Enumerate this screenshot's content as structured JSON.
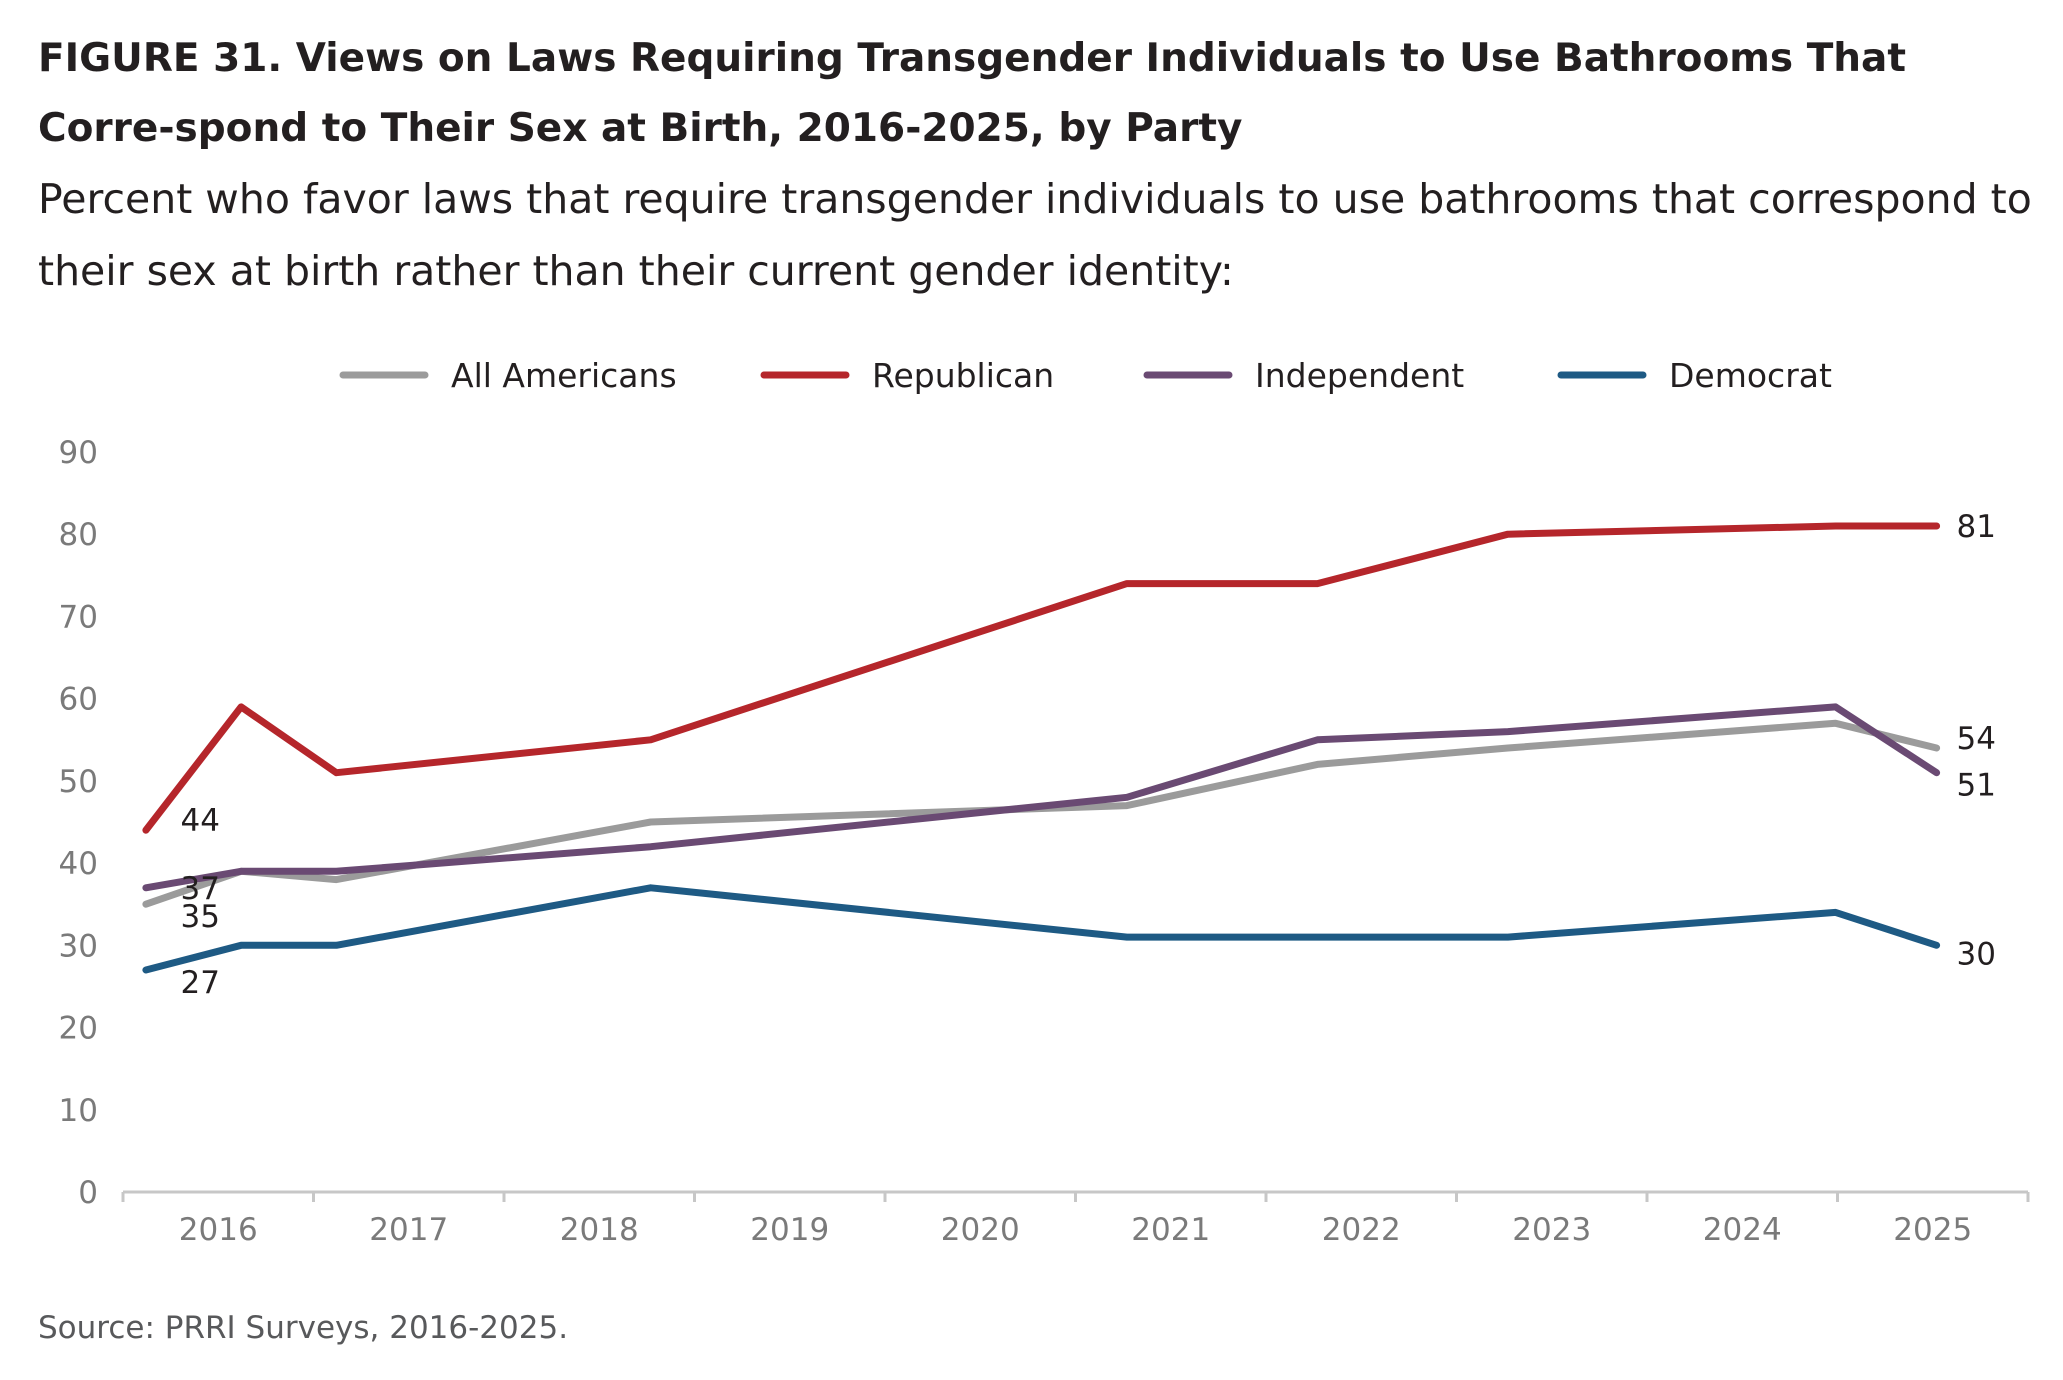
{
  "title": "FIGURE 31.  Views on Laws Requiring Transgender Individuals to Use Bathrooms That Corre-spond to Their Sex at Birth, 2016-2025, by Party",
  "subtitle": "Percent who favor laws that require transgender individuals to use bathrooms that correspond to their sex at birth rather than their current gender identity:",
  "source": "Source: PRRI Surveys, 2016-2025.",
  "chart_data": {
    "type": "line",
    "title": "FIGURE 31.  Views on Laws Requiring Transgender Individuals to Use Bathrooms That Corre-spond to Their Sex at Birth, 2016-2025, by Party",
    "subtitle": "Percent who favor laws that require transgender individuals to use bathrooms that correspond to their sex at birth rather than their current gender identity:",
    "xlabel": "",
    "ylabel": "",
    "x_ticks": [
      "2016",
      "2017",
      "2018",
      "2019",
      "2020",
      "2021",
      "2022",
      "2023",
      "2024",
      "2025"
    ],
    "xlim": [
      2016,
      2026
    ],
    "ylim": [
      0,
      90
    ],
    "y_ticks": [
      0,
      10,
      20,
      30,
      40,
      50,
      60,
      70,
      80,
      90
    ],
    "grid": false,
    "legend_position": "top",
    "series": [
      {
        "name": "All Americans",
        "color": "#9b9b9b",
        "points": [
          [
            2016.12,
            35
          ],
          [
            2016.62,
            39
          ],
          [
            2017.12,
            38
          ],
          [
            2018.77,
            45
          ],
          [
            2021.27,
            47
          ],
          [
            2022.27,
            52
          ],
          [
            2023.27,
            54
          ],
          [
            2024.99,
            57
          ],
          [
            2025.52,
            54
          ]
        ],
        "end_label": "54",
        "start_label": "35"
      },
      {
        "name": "Republican",
        "color": "#b5262b",
        "points": [
          [
            2016.12,
            44
          ],
          [
            2016.62,
            59
          ],
          [
            2017.12,
            51
          ],
          [
            2018.77,
            55
          ],
          [
            2021.27,
            74
          ],
          [
            2022.27,
            74
          ],
          [
            2023.27,
            80
          ],
          [
            2024.99,
            81
          ],
          [
            2025.52,
            81
          ]
        ],
        "end_label": "81",
        "start_label": "44"
      },
      {
        "name": "Independent",
        "color": "#6a4a73",
        "points": [
          [
            2016.12,
            37
          ],
          [
            2016.62,
            39
          ],
          [
            2017.12,
            39
          ],
          [
            2018.77,
            42
          ],
          [
            2021.27,
            48
          ],
          [
            2022.27,
            55
          ],
          [
            2023.27,
            56
          ],
          [
            2024.99,
            59
          ],
          [
            2025.52,
            51
          ]
        ],
        "end_label": "51",
        "start_label": "37"
      },
      {
        "name": "Democrat",
        "color": "#1e5a84",
        "points": [
          [
            2016.12,
            27
          ],
          [
            2016.62,
            30
          ],
          [
            2017.12,
            30
          ],
          [
            2018.77,
            37
          ],
          [
            2021.27,
            31
          ],
          [
            2022.27,
            31
          ],
          [
            2023.27,
            31
          ],
          [
            2024.99,
            34
          ],
          [
            2025.52,
            30
          ]
        ],
        "end_label": "30",
        "start_label": "27"
      }
    ]
  }
}
